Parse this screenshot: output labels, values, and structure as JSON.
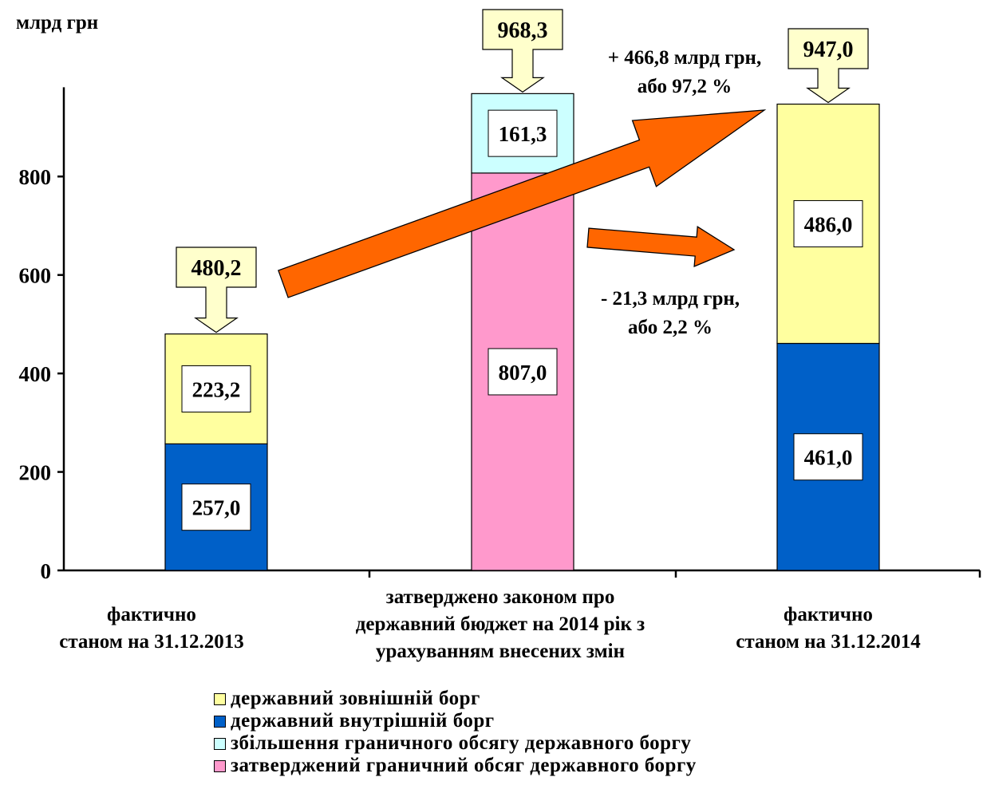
{
  "chart_data": {
    "type": "bar",
    "stacked": true,
    "ylabel": "млрд грн",
    "ylim": [
      0,
      968.3
    ],
    "yticks": [
      0,
      200,
      400,
      600,
      800
    ],
    "categories": [
      [
        "фактично",
        "станом на 31.12.2013"
      ],
      [
        "затверджено законом про",
        "державний бюджет на 2014 рік з",
        "урахуванням внесених змін"
      ],
      [
        "фактично",
        "станом на 31.12.2014"
      ]
    ],
    "series": [
      {
        "name": "державний внутрішній борг",
        "color": "#0060c8",
        "values": [
          257.0,
          null,
          461.0
        ],
        "labels": [
          "257,0",
          "",
          "461,0"
        ]
      },
      {
        "name": "державний зовнішній борг",
        "color": "#ffff9f",
        "values": [
          223.2,
          null,
          486.0
        ],
        "labels": [
          "223,2",
          "",
          "486,0"
        ]
      },
      {
        "name": "затверджений граничний обсяг державного боргу",
        "color": "#ff99cc",
        "values": [
          null,
          807.0,
          null
        ],
        "labels": [
          "",
          "807,0",
          ""
        ]
      },
      {
        "name": "збільшення граничного обсягу державного боргу",
        "color": "#ccffff",
        "values": [
          null,
          161.3,
          null
        ],
        "labels": [
          "",
          "161,3",
          ""
        ]
      }
    ],
    "totals": [
      480.2,
      968.3,
      947.0
    ],
    "total_labels": [
      "480,2",
      "968,3",
      "947,0"
    ],
    "annotations": [
      {
        "lines": [
          "+ 466,8 млрд грн,",
          "або 97,2 %"
        ]
      },
      {
        "lines": [
          "- 21,3 млрд грн,",
          "або 2,2 %"
        ]
      }
    ],
    "legend": {
      "placement": "bottom",
      "items": [
        {
          "label": "державний зовнішній борг",
          "color": "#ffff9f"
        },
        {
          "label": "державний внутрішній борг",
          "color": "#0060c8"
        },
        {
          "label": "збільшення граничного обсягу державного боргу",
          "color": "#ccffff"
        },
        {
          "label": "затверджений граничний обсяг державного боргу",
          "color": "#ff99cc"
        }
      ]
    },
    "arrow_color": "#ff6600"
  }
}
